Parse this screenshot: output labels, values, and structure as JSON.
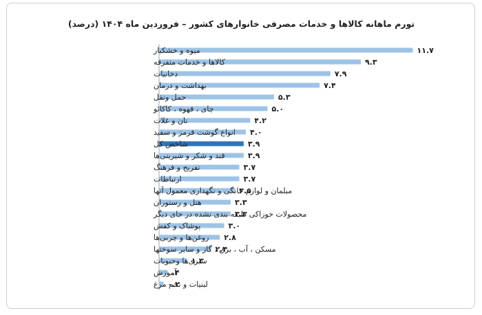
{
  "chart_data": {
    "type": "bar",
    "orientation": "horizontal",
    "title": "تورم ماهانه کالاها و خدمات مصرفی خانوارهای کشور – فروردین ماه ۱۴۰۴ (درصد)",
    "categories": [
      "میوه و خشکبار",
      "کالاها و خدمات متفرقه",
      "دخانیات",
      "بهداشت و درمان",
      "حمل ونقل",
      "چای ، قهوه ، کاکائو",
      "نان و غلات",
      "انواع گوشت قرمز و سفید",
      "شاخص کل",
      "قند و شکر و شیرینی‌ها",
      "تفریح و فرهنگ",
      "ارتباطات",
      "مبلمان و لوازم خانگی و نگهداری معمول آنها",
      "هتل و رستوران",
      "محصولات خوراکی طبقه بندی نشده در جای دیگر",
      "پوشاک و کفش",
      "روغن‌ها و چربی‌ها",
      "مسکن ، آب ، برق ، گاز و سایر سوختها",
      "سبزی‌ها وحبوبات",
      "آموزش",
      "لبنیات و تخم مرغ"
    ],
    "values": [
      11.7,
      9.3,
      7.9,
      7.4,
      5.3,
      5.0,
      4.2,
      4.0,
      3.9,
      3.9,
      3.7,
      3.7,
      3.5,
      3.3,
      3.3,
      3.0,
      2.8,
      2.4,
      1.3,
      0.4,
      0.2
    ],
    "value_labels": [
      "۱۱.۷",
      "۹.۳",
      "۷.۹",
      "۷.۴",
      "۵.۳",
      "۵.۰",
      "۴.۲",
      "۴.۰",
      "۳.۹",
      "۳.۹",
      "۳.۷",
      "۳.۷",
      "۳.۵",
      "۳.۳",
      "۳.۳",
      "۳.۰",
      "۲.۸",
      "۲.۴",
      "۱.۳",
      ".۴",
      "۰.۲"
    ],
    "highlight_category": "شاخص کل",
    "colors": {
      "bar": "#9dc3e6",
      "highlight": "#2e75b6",
      "axis": "#a6a6a6"
    },
    "grid": false,
    "legend": "none"
  }
}
